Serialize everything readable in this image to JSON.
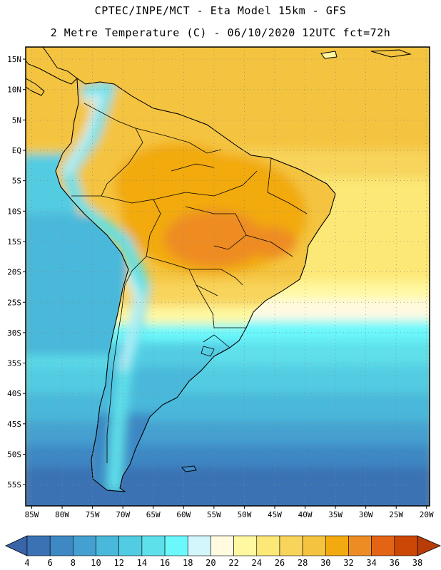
{
  "header": {
    "line1": "CPTEC/INPE/MCT -  Eta Model 15km - GFS",
    "line2": "2 Metre Temperature (C) - 06/10/2020 12UTC fct=72h"
  },
  "map": {
    "lon_range": [
      -86,
      -19.5
    ],
    "lat_range": [
      -58.5,
      17
    ],
    "lat_ticks": [
      {
        "v": 15,
        "label": "15N"
      },
      {
        "v": 10,
        "label": "10N"
      },
      {
        "v": 5,
        "label": "5N"
      },
      {
        "v": 0,
        "label": "EQ"
      },
      {
        "v": -5,
        "label": "5S"
      },
      {
        "v": -10,
        "label": "10S"
      },
      {
        "v": -15,
        "label": "15S"
      },
      {
        "v": -20,
        "label": "20S"
      },
      {
        "v": -25,
        "label": "25S"
      },
      {
        "v": -30,
        "label": "30S"
      },
      {
        "v": -35,
        "label": "35S"
      },
      {
        "v": -40,
        "label": "40S"
      },
      {
        "v": -45,
        "label": "45S"
      },
      {
        "v": -50,
        "label": "50S"
      },
      {
        "v": -55,
        "label": "55S"
      }
    ],
    "lon_ticks": [
      {
        "v": -85,
        "label": "85W"
      },
      {
        "v": -80,
        "label": "80W"
      },
      {
        "v": -75,
        "label": "75W"
      },
      {
        "v": -70,
        "label": "70W"
      },
      {
        "v": -65,
        "label": "65W"
      },
      {
        "v": -60,
        "label": "60W"
      },
      {
        "v": -55,
        "label": "55W"
      },
      {
        "v": -50,
        "label": "50W"
      },
      {
        "v": -45,
        "label": "45W"
      },
      {
        "v": -40,
        "label": "40W"
      },
      {
        "v": -35,
        "label": "35W"
      },
      {
        "v": -30,
        "label": "30W"
      },
      {
        "v": -25,
        "label": "25W"
      },
      {
        "v": -20,
        "label": "20W"
      }
    ]
  },
  "colorbar": {
    "labels": [
      "4",
      "6",
      "8",
      "10",
      "12",
      "14",
      "16",
      "18",
      "20",
      "22",
      "24",
      "26",
      "28",
      "30",
      "32",
      "34",
      "36",
      "38"
    ],
    "colors": [
      "#3a72b4",
      "#3e88c4",
      "#44a0d0",
      "#4ab8da",
      "#52cce2",
      "#5ee0ea",
      "#6af8fc",
      "#d2f6fc",
      "#fffae0",
      "#fff8a0",
      "#fce876",
      "#f8d45c",
      "#f4c440",
      "#f2aa10",
      "#ee8c24",
      "#e26414",
      "#cc4606"
    ],
    "low_color": "#3a64a8",
    "high_color": "#b83c08"
  }
}
